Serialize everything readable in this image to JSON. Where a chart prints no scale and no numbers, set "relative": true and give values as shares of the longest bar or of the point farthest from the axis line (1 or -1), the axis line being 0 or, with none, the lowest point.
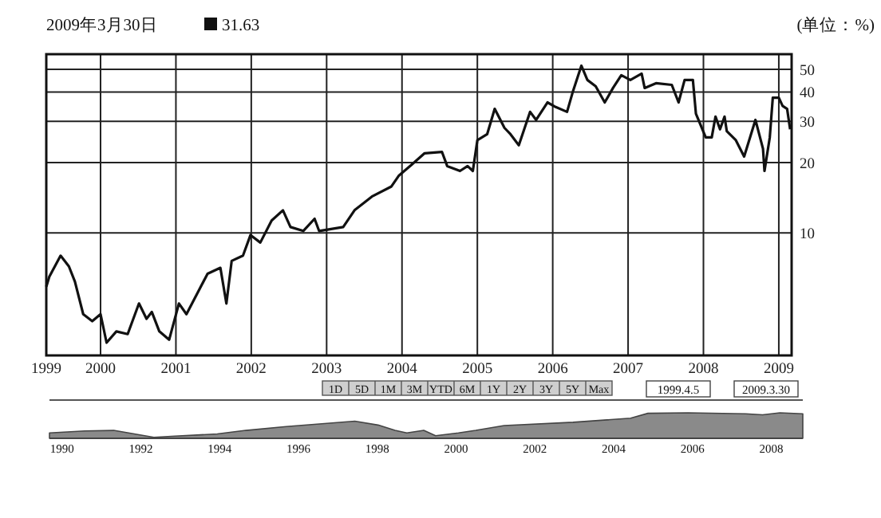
{
  "chart_data": [
    {
      "type": "line",
      "title": "2009年3月30日",
      "ylabel": "(单位：%)",
      "annotations": [
        "31.63"
      ],
      "log": true,
      "grid": true,
      "ylim": [
        3,
        58
      ],
      "yticks": [
        10,
        20,
        30,
        40,
        50
      ],
      "xlim": [
        1999.28,
        2009.17
      ],
      "xticks": [
        {
          "value": 1999.28,
          "label": "1999"
        },
        2000,
        2001,
        2002,
        2003,
        2004,
        2005,
        2006,
        2007,
        2008,
        2009
      ],
      "series": [
        {
          "color": "#111111",
          "x": [
            1999.28,
            1999.32,
            1999.47,
            1999.58,
            1999.66,
            1999.77,
            1999.89,
            2000.0,
            2000.08,
            2000.21,
            2000.36,
            2000.51,
            2000.61,
            2000.68,
            2000.78,
            2000.91,
            2001.04,
            2001.14,
            2001.42,
            2001.59,
            2001.67,
            2001.74,
            2001.89,
            2001.99,
            2002.12,
            2002.27,
            2002.42,
            2002.52,
            2002.69,
            2002.84,
            2002.9,
            2003.22,
            2003.37,
            2003.6,
            2003.86,
            2003.96,
            2004.13,
            2004.3,
            2004.53,
            2004.6,
            2004.77,
            2004.87,
            2004.94,
            2005.0,
            2005.13,
            2005.23,
            2005.36,
            2005.44,
            2005.55,
            2005.7,
            2005.78,
            2005.93,
            2006.04,
            2006.19,
            2006.27,
            2006.38,
            2006.46,
            2006.57,
            2006.69,
            2006.8,
            2006.91,
            2007.03,
            2007.18,
            2007.22,
            2007.37,
            2007.58,
            2007.67,
            2007.75,
            2007.86,
            2007.9,
            2008.03,
            2008.11,
            2008.16,
            2008.22,
            2008.28,
            2008.31,
            2008.43,
            2008.54,
            2008.69,
            2008.79,
            2008.81,
            2008.88,
            2008.92,
            2009.0,
            2009.05,
            2009.11,
            2009.15
          ],
          "values": [
            5.9,
            6.5,
            8.0,
            7.2,
            6.2,
            4.5,
            4.2,
            4.5,
            3.4,
            3.8,
            3.7,
            5.0,
            4.3,
            4.6,
            3.8,
            3.5,
            5.0,
            4.5,
            6.7,
            7.1,
            5.0,
            7.6,
            8.0,
            9.8,
            9.1,
            11.3,
            12.5,
            10.6,
            10.2,
            11.5,
            10.2,
            10.6,
            12.5,
            14.3,
            15.8,
            17.6,
            19.6,
            21.9,
            22.2,
            19.3,
            18.4,
            19.3,
            18.4,
            24.9,
            26.4,
            33.9,
            28.1,
            26.4,
            23.7,
            32.9,
            30.4,
            36.1,
            34.5,
            32.9,
            40.4,
            51.8,
            45,
            42.3,
            36.1,
            41.6,
            47.2,
            45,
            47.9,
            41.6,
            43.6,
            42.9,
            36.1,
            45,
            45,
            32.3,
            25.6,
            25.6,
            31.4,
            27.7,
            31.4,
            27.2,
            24.9,
            21.2,
            30.4,
            22.9,
            18.4,
            25.6,
            37.8,
            37.8,
            34.9,
            33.9,
            27.7
          ]
        }
      ]
    },
    {
      "type": "area",
      "relative": true,
      "xlim": [
        1989.68,
        2008.8
      ],
      "xticks": [
        1990,
        1992,
        1994,
        1996,
        1998,
        2000,
        2002,
        2004,
        2006,
        2008
      ],
      "annotations": [
        "1D",
        "5D",
        "1M",
        "3M",
        "YTD",
        "6M",
        "1Y",
        "2Y",
        "3Y",
        "5Y",
        "Max",
        "1999.4.5",
        "2009.3.30"
      ],
      "series": [
        {
          "color": "#8a8a8a",
          "x": [
            1989.68,
            1990.58,
            1991.31,
            1992.33,
            1992.77,
            1993.94,
            1994.66,
            1995.69,
            1997.43,
            1998.02,
            1998.45,
            1998.75,
            1999.18,
            1999.48,
            2000.06,
            2000.5,
            2001.22,
            2002.97,
            2004.43,
            2004.87,
            2005.89,
            2007.35,
            2007.78,
            2008.22,
            2008.8
          ],
          "values": [
            0.21,
            0.29,
            0.31,
            0.04,
            0.08,
            0.17,
            0.31,
            0.46,
            0.67,
            0.52,
            0.31,
            0.21,
            0.31,
            0.1,
            0.21,
            0.31,
            0.5,
            0.63,
            0.79,
            0.98,
            1,
            0.96,
            0.92,
            1,
            0.96
          ]
        }
      ]
    }
  ]
}
